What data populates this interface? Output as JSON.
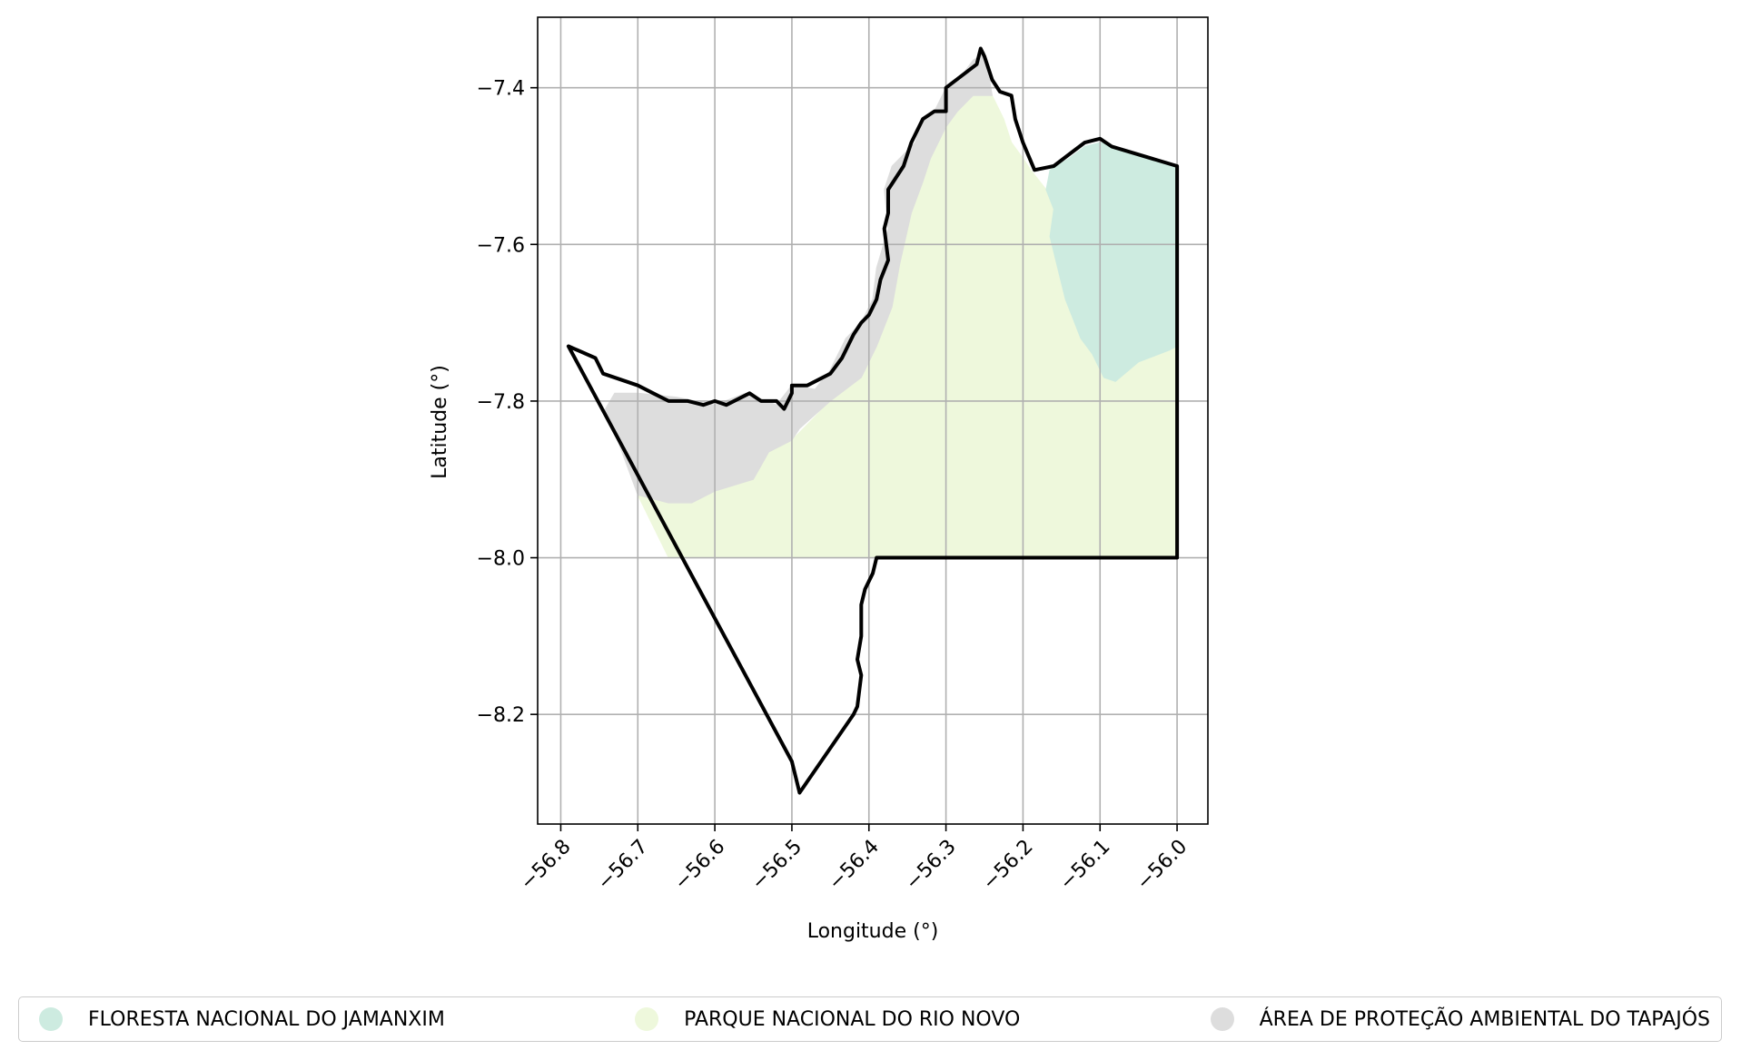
{
  "chart_data": {
    "type": "map",
    "xlabel": "Longitude (°)",
    "ylabel": "Latitude (°)",
    "xlim": [
      -56.83,
      -55.96
    ],
    "ylim": [
      -8.34,
      -7.31
    ],
    "xticks": [
      -56.8,
      -56.7,
      -56.6,
      -56.5,
      -56.4,
      -56.3,
      -56.2,
      -56.1,
      -56.0
    ],
    "xtick_labels": [
      "−56.8",
      "−56.7",
      "−56.6",
      "−56.5",
      "−56.4",
      "−56.3",
      "−56.2",
      "−56.1",
      "−56.0"
    ],
    "yticks": [
      -7.4,
      -7.6,
      -7.8,
      -8.0,
      -8.2
    ],
    "ytick_labels": [
      "−7.4",
      "−7.6",
      "−7.8",
      "−8.0",
      "−8.2"
    ],
    "grid": true,
    "legend_position": "bottom",
    "regions": [
      {
        "name": "FLORESTA NACIONAL DO JAMANXIM",
        "color": "#cdebe0",
        "coords": [
          [
            -56.1,
            -7.47
          ],
          [
            -56.08,
            -7.475
          ],
          [
            -56.0,
            -7.5
          ],
          [
            -56.0,
            -7.73
          ],
          [
            -56.01,
            -7.735
          ],
          [
            -56.05,
            -7.75
          ],
          [
            -56.08,
            -7.775
          ],
          [
            -56.095,
            -7.77
          ],
          [
            -56.11,
            -7.74
          ],
          [
            -56.125,
            -7.72
          ],
          [
            -56.135,
            -7.695
          ],
          [
            -56.145,
            -7.67
          ],
          [
            -56.155,
            -7.63
          ],
          [
            -56.165,
            -7.59
          ],
          [
            -56.16,
            -7.555
          ],
          [
            -56.17,
            -7.53
          ],
          [
            -56.165,
            -7.505
          ],
          [
            -56.14,
            -7.49
          ],
          [
            -56.12,
            -7.475
          ]
        ]
      },
      {
        "name": "PARQUE NACIONAL DO RIO NOVO",
        "color": "#eef8dc",
        "coords": [
          [
            -56.265,
            -7.41
          ],
          [
            -56.24,
            -7.41
          ],
          [
            -56.225,
            -7.44
          ],
          [
            -56.215,
            -7.47
          ],
          [
            -56.2,
            -7.49
          ],
          [
            -56.19,
            -7.505
          ],
          [
            -56.17,
            -7.53
          ],
          [
            -56.16,
            -7.555
          ],
          [
            -56.165,
            -7.59
          ],
          [
            -56.155,
            -7.63
          ],
          [
            -56.145,
            -7.67
          ],
          [
            -56.135,
            -7.695
          ],
          [
            -56.125,
            -7.72
          ],
          [
            -56.11,
            -7.74
          ],
          [
            -56.095,
            -7.77
          ],
          [
            -56.08,
            -7.775
          ],
          [
            -56.05,
            -7.75
          ],
          [
            -56.01,
            -7.735
          ],
          [
            -56.0,
            -7.73
          ],
          [
            -56.0,
            -8.0
          ],
          [
            -56.66,
            -8.0
          ],
          [
            -56.7,
            -7.92
          ],
          [
            -56.66,
            -7.93
          ],
          [
            -56.6,
            -7.915
          ],
          [
            -56.55,
            -7.9
          ],
          [
            -56.53,
            -7.865
          ],
          [
            -56.5,
            -7.85
          ],
          [
            -56.45,
            -7.8
          ],
          [
            -56.41,
            -7.77
          ],
          [
            -56.39,
            -7.73
          ],
          [
            -56.37,
            -7.68
          ],
          [
            -56.36,
            -7.625
          ],
          [
            -56.345,
            -7.56
          ],
          [
            -56.33,
            -7.52
          ],
          [
            -56.32,
            -7.49
          ],
          [
            -56.3,
            -7.45
          ],
          [
            -56.285,
            -7.43
          ]
        ]
      },
      {
        "name": "ÁREA DE PROTEÇÃO AMBIENTAL DO TAPAJÓS",
        "color": "#dddddd",
        "coords": [
          [
            -56.25,
            -7.355
          ],
          [
            -56.245,
            -7.38
          ],
          [
            -56.24,
            -7.41
          ],
          [
            -56.265,
            -7.41
          ],
          [
            -56.285,
            -7.43
          ],
          [
            -56.3,
            -7.45
          ],
          [
            -56.32,
            -7.49
          ],
          [
            -56.33,
            -7.52
          ],
          [
            -56.345,
            -7.56
          ],
          [
            -56.36,
            -7.625
          ],
          [
            -56.37,
            -7.68
          ],
          [
            -56.39,
            -7.73
          ],
          [
            -56.41,
            -7.77
          ],
          [
            -56.45,
            -7.8
          ],
          [
            -56.49,
            -7.835
          ],
          [
            -56.5,
            -7.85
          ],
          [
            -56.53,
            -7.865
          ],
          [
            -56.55,
            -7.9
          ],
          [
            -56.6,
            -7.915
          ],
          [
            -56.63,
            -7.93
          ],
          [
            -56.66,
            -7.93
          ],
          [
            -56.7,
            -7.92
          ],
          [
            -56.73,
            -7.84
          ],
          [
            -56.745,
            -7.815
          ],
          [
            -56.73,
            -7.79
          ],
          [
            -56.7,
            -7.79
          ],
          [
            -56.65,
            -7.795
          ],
          [
            -56.6,
            -7.805
          ],
          [
            -56.56,
            -7.79
          ],
          [
            -56.52,
            -7.805
          ],
          [
            -56.5,
            -7.78
          ],
          [
            -56.47,
            -7.785
          ],
          [
            -56.45,
            -7.76
          ],
          [
            -56.43,
            -7.72
          ],
          [
            -56.41,
            -7.7
          ],
          [
            -56.395,
            -7.67
          ],
          [
            -56.39,
            -7.63
          ],
          [
            -56.375,
            -7.58
          ],
          [
            -56.38,
            -7.53
          ],
          [
            -56.37,
            -7.5
          ],
          [
            -56.34,
            -7.47
          ],
          [
            -56.33,
            -7.44
          ],
          [
            -56.315,
            -7.43
          ],
          [
            -56.3,
            -7.4
          ],
          [
            -56.28,
            -7.385
          ],
          [
            -56.265,
            -7.365
          ]
        ]
      }
    ],
    "outline": [
      [
        -56.79,
        -7.73
      ],
      [
        -56.755,
        -7.745
      ],
      [
        -56.745,
        -7.765
      ],
      [
        -56.7,
        -7.78
      ],
      [
        -56.68,
        -7.79
      ],
      [
        -56.66,
        -7.8
      ],
      [
        -56.635,
        -7.8
      ],
      [
        -56.615,
        -7.805
      ],
      [
        -56.6,
        -7.8
      ],
      [
        -56.585,
        -7.805
      ],
      [
        -56.555,
        -7.79
      ],
      [
        -56.54,
        -7.8
      ],
      [
        -56.52,
        -7.8
      ],
      [
        -56.51,
        -7.81
      ],
      [
        -56.5,
        -7.79
      ],
      [
        -56.5,
        -7.78
      ],
      [
        -56.48,
        -7.78
      ],
      [
        -56.45,
        -7.765
      ],
      [
        -56.435,
        -7.745
      ],
      [
        -56.42,
        -7.715
      ],
      [
        -56.41,
        -7.7
      ],
      [
        -56.4,
        -7.69
      ],
      [
        -56.39,
        -7.67
      ],
      [
        -56.385,
        -7.645
      ],
      [
        -56.375,
        -7.62
      ],
      [
        -56.38,
        -7.58
      ],
      [
        -56.375,
        -7.56
      ],
      [
        -56.375,
        -7.53
      ],
      [
        -56.355,
        -7.5
      ],
      [
        -56.345,
        -7.47
      ],
      [
        -56.33,
        -7.44
      ],
      [
        -56.315,
        -7.43
      ],
      [
        -56.3,
        -7.43
      ],
      [
        -56.3,
        -7.4
      ],
      [
        -56.28,
        -7.385
      ],
      [
        -56.26,
        -7.37
      ],
      [
        -56.255,
        -7.35
      ],
      [
        -56.25,
        -7.36
      ],
      [
        -56.24,
        -7.39
      ],
      [
        -56.23,
        -7.405
      ],
      [
        -56.215,
        -7.41
      ],
      [
        -56.21,
        -7.44
      ],
      [
        -56.2,
        -7.47
      ],
      [
        -56.185,
        -7.505
      ],
      [
        -56.16,
        -7.5
      ],
      [
        -56.14,
        -7.485
      ],
      [
        -56.12,
        -7.47
      ],
      [
        -56.1,
        -7.465
      ],
      [
        -56.085,
        -7.475
      ],
      [
        -56.0,
        -7.5
      ],
      [
        -56.0,
        -8.0
      ],
      [
        -56.39,
        -8.0
      ],
      [
        -56.395,
        -8.02
      ],
      [
        -56.405,
        -8.04
      ],
      [
        -56.41,
        -8.06
      ],
      [
        -56.41,
        -8.1
      ],
      [
        -56.415,
        -8.13
      ],
      [
        -56.41,
        -8.15
      ],
      [
        -56.415,
        -8.19
      ],
      [
        -56.42,
        -8.2
      ],
      [
        -56.49,
        -8.3
      ],
      [
        -56.5,
        -8.26
      ],
      [
        -56.79,
        -7.73
      ]
    ]
  }
}
